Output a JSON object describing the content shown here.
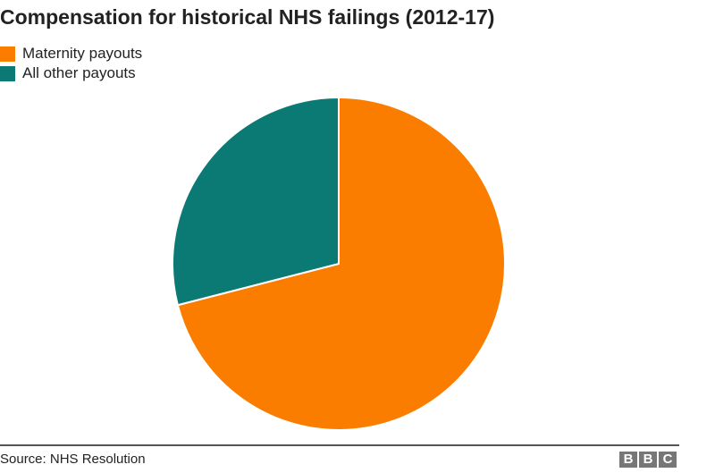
{
  "chart_data": {
    "type": "pie",
    "title": "Compensation for historical NHS failings (2012-17)",
    "slices": [
      {
        "label": "Maternity payouts",
        "value": 71,
        "color": "#fa7d00"
      },
      {
        "label": "All other payouts",
        "value": 29,
        "color": "#0b7a75"
      }
    ],
    "legend_position": "top-left"
  },
  "source": "Source: NHS Resolution",
  "logo": [
    "B",
    "B",
    "C"
  ]
}
